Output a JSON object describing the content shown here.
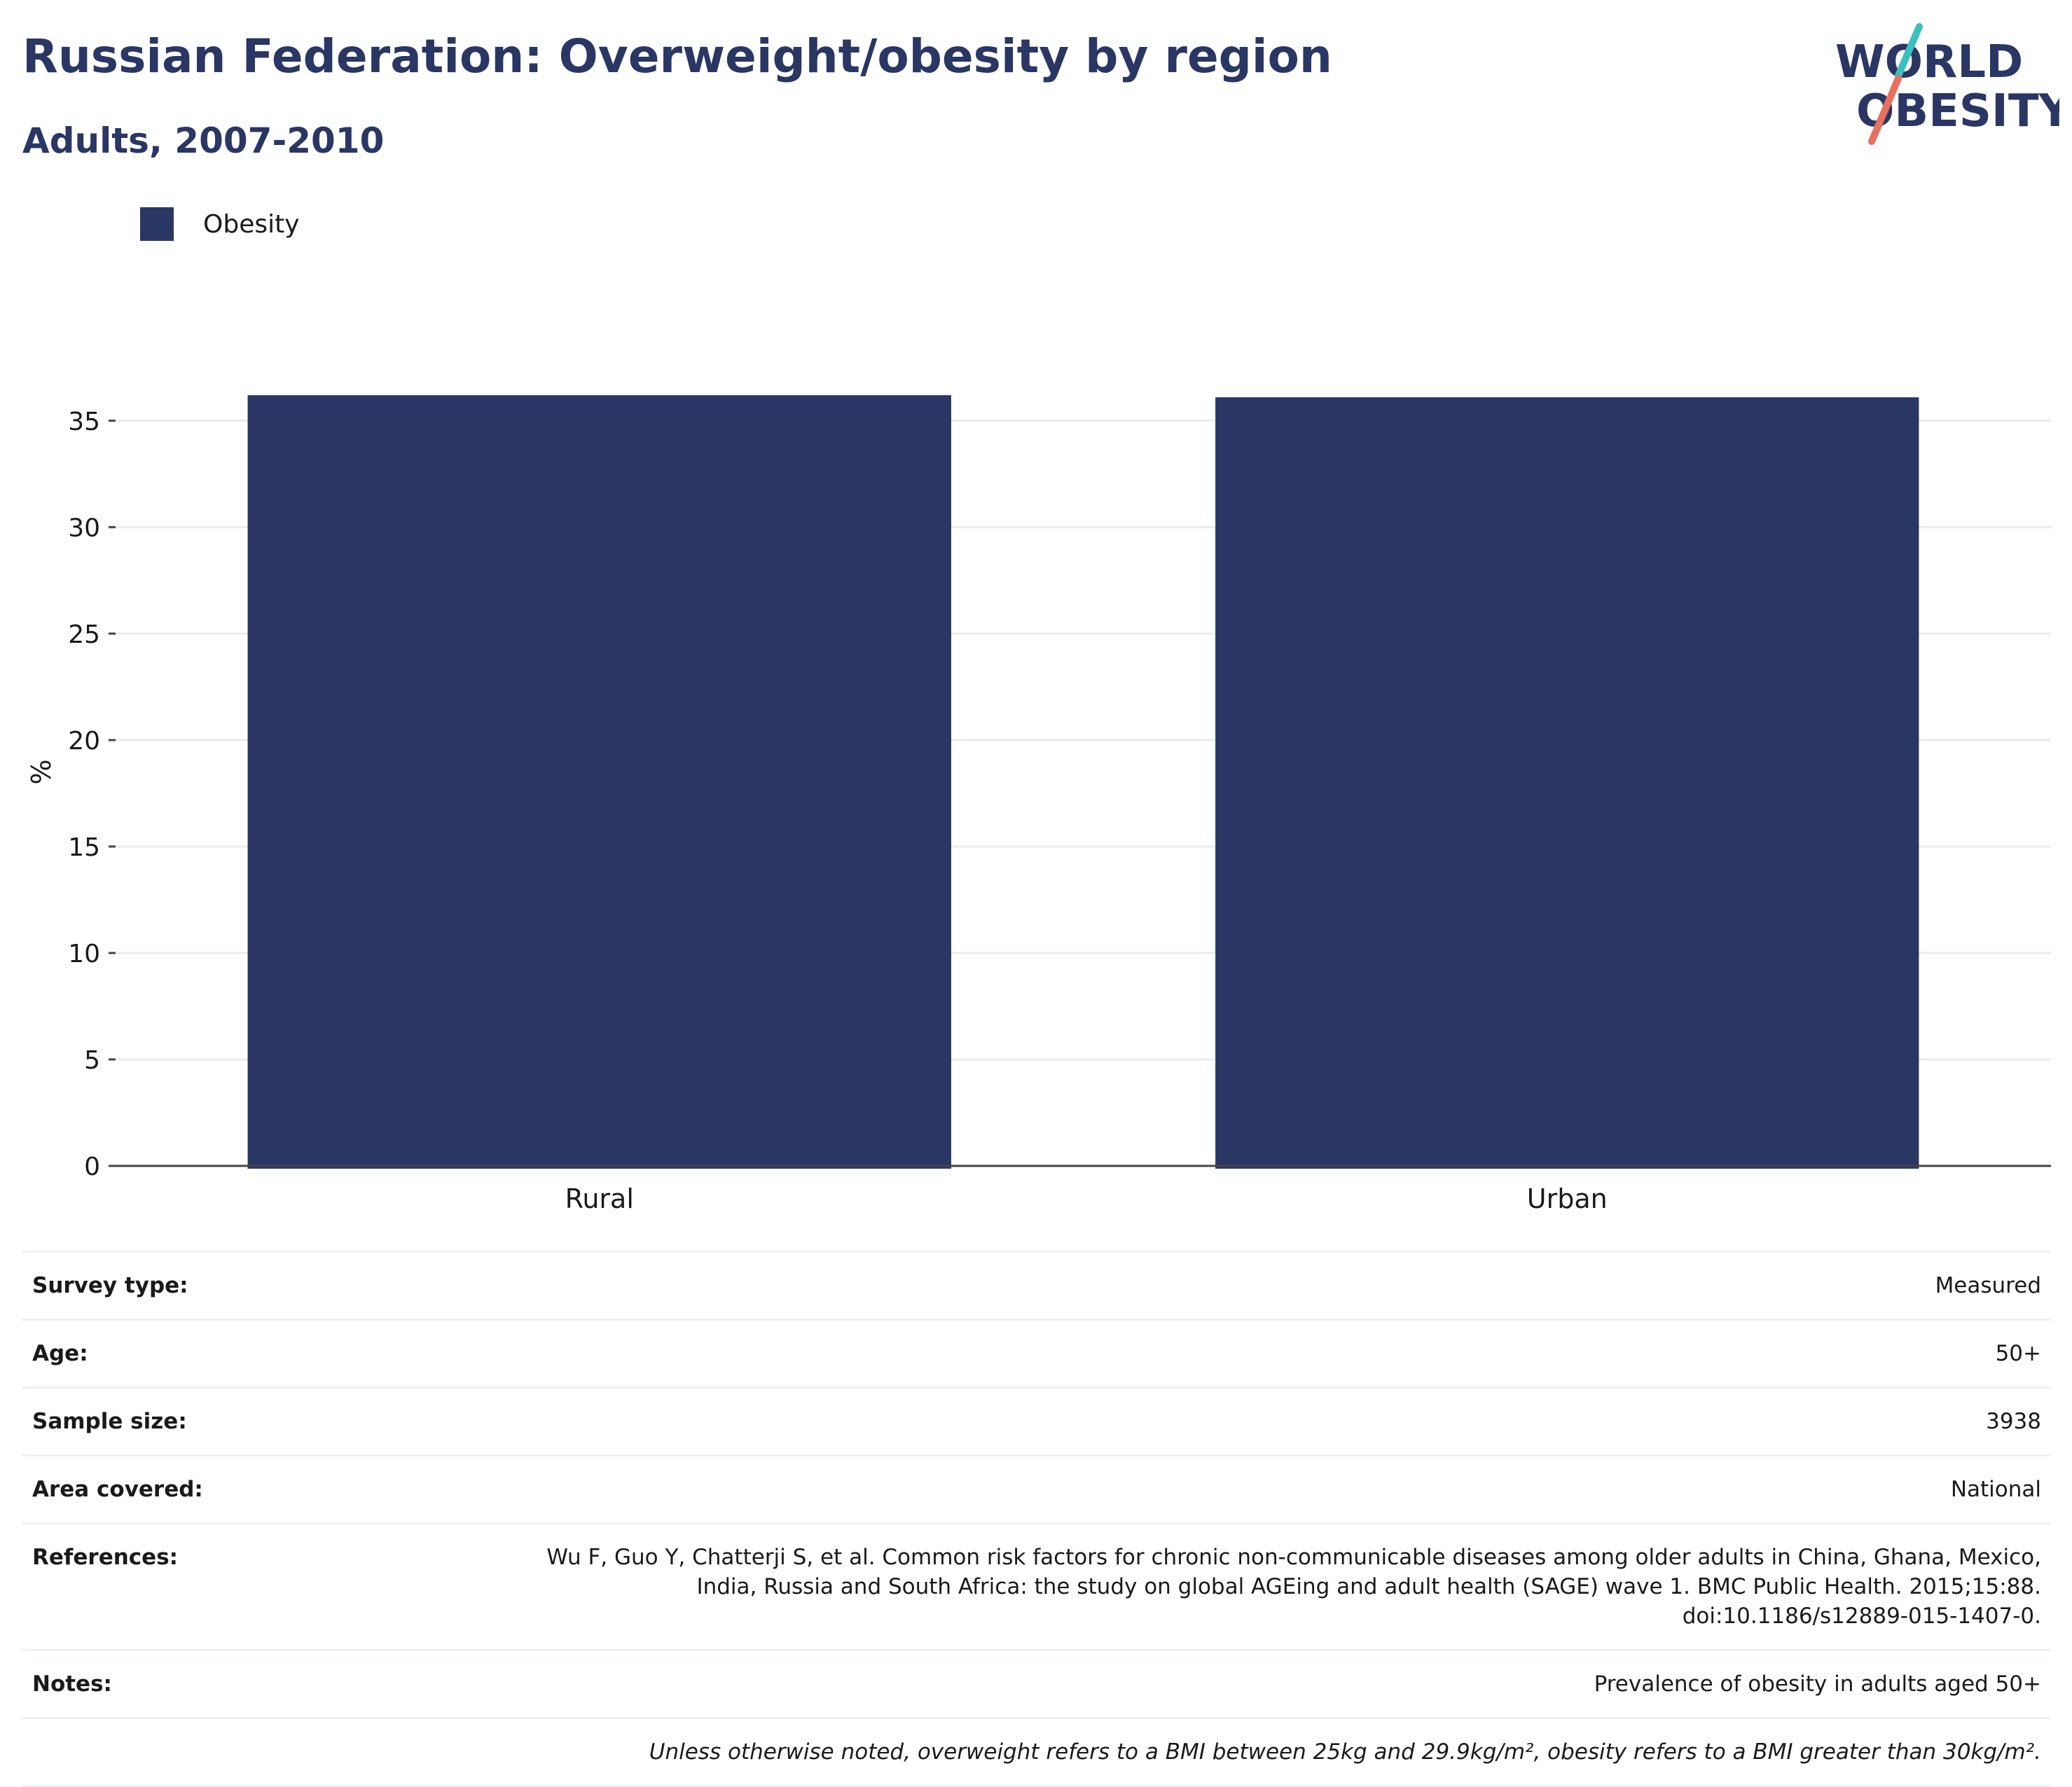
{
  "header": {
    "title": "Russian Federation: Overweight/obesity by region",
    "subtitle": "Adults, 2007-2010"
  },
  "logo": {
    "line1": "WORLD",
    "line2": "OBESITY"
  },
  "colors": {
    "bar": "#2a3663",
    "title": "#2a3663",
    "logo_teal": "#3bbfbf",
    "logo_coral": "#e8705f",
    "grid": "#eaeaf0"
  },
  "chart_data": {
    "type": "bar",
    "categories": [
      "Rural",
      "Urban"
    ],
    "series": [
      {
        "name": "Obesity",
        "values": [
          36.2,
          36.1
        ]
      }
    ],
    "ylabel": "%",
    "xlabel": "",
    "ylim": [
      0,
      37
    ],
    "yticks": [
      0,
      5,
      10,
      15,
      20,
      25,
      30,
      35
    ],
    "grid": true,
    "legend_position": "top-left"
  },
  "info": [
    {
      "key": "Survey type:",
      "value": "Measured"
    },
    {
      "key": "Age:",
      "value": "50+"
    },
    {
      "key": "Sample size:",
      "value": "3938"
    },
    {
      "key": "Area covered:",
      "value": "National"
    },
    {
      "key": "References:",
      "value": "Wu F, Guo Y, Chatterji S, et al. Common risk factors for chronic non-communicable diseases among older adults in China, Ghana, Mexico, India, Russia and South Africa: the study on global AGEing and adult health (SAGE) wave 1. BMC Public Health. 2015;15:88. doi:10.1186/s12889-015-1407-0."
    },
    {
      "key": "Notes:",
      "value": "Prevalence of obesity in adults aged 50+"
    }
  ],
  "footnote": "Unless otherwise noted, overweight refers to a BMI between 25kg and 29.9kg/m², obesity refers to a BMI greater than 30kg/m²."
}
